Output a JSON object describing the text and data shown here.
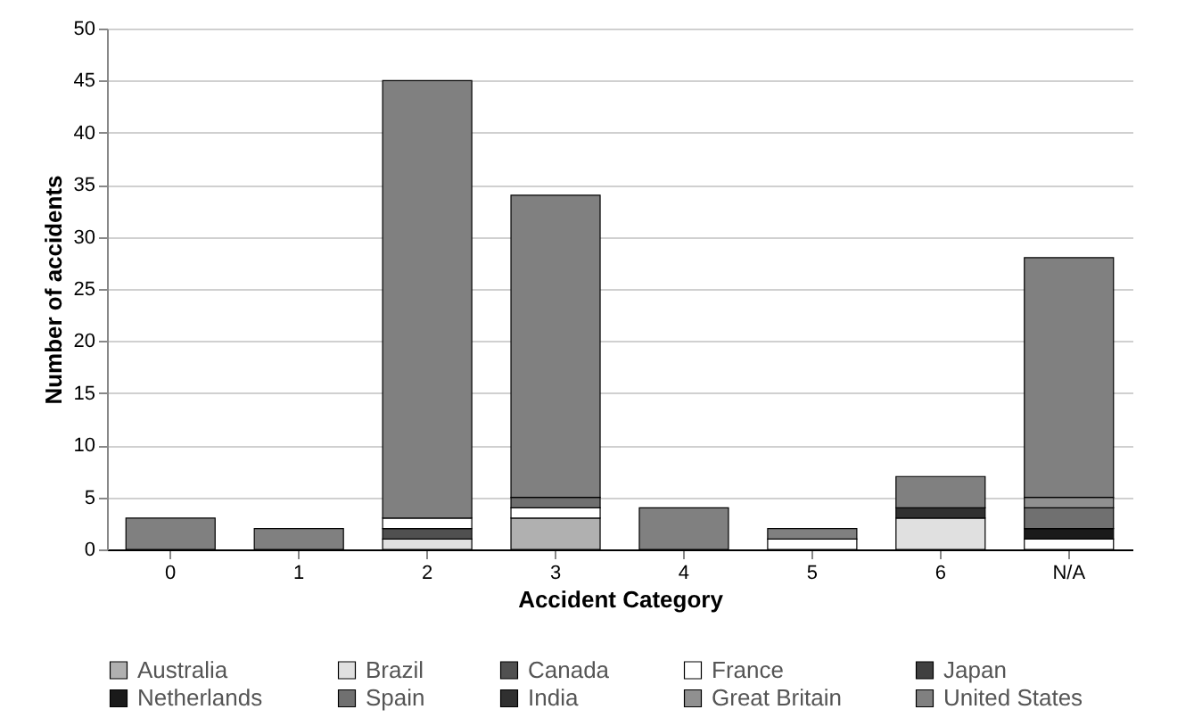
{
  "chart_data": {
    "type": "bar",
    "stacked": true,
    "xlabel": "Accident Category",
    "ylabel": "Number of accidents",
    "categories": [
      "0",
      "1",
      "2",
      "3",
      "4",
      "5",
      "6",
      "N/A"
    ],
    "series": [
      {
        "name": "Australia",
        "color": "#b0b0b0",
        "values": [
          null,
          null,
          null,
          3,
          null,
          null,
          null,
          null
        ]
      },
      {
        "name": "Brazil",
        "color": "#e0e0e0",
        "values": [
          null,
          null,
          1,
          null,
          null,
          null,
          3,
          null
        ]
      },
      {
        "name": "Canada",
        "color": "#505050",
        "values": [
          null,
          null,
          1,
          null,
          null,
          null,
          null,
          null
        ]
      },
      {
        "name": "France",
        "color": "#ffffff",
        "values": [
          null,
          null,
          1,
          1,
          null,
          1,
          null,
          1
        ]
      },
      {
        "name": "Japan",
        "color": "#404040",
        "values": [
          null,
          null,
          null,
          null,
          null,
          null,
          null,
          null
        ]
      },
      {
        "name": "Netherlands",
        "color": "#1a1a1a",
        "values": [
          null,
          null,
          null,
          null,
          null,
          null,
          null,
          1
        ]
      },
      {
        "name": "Spain",
        "color": "#707070",
        "values": [
          null,
          null,
          null,
          1,
          null,
          null,
          null,
          2
        ]
      },
      {
        "name": "India",
        "color": "#303030",
        "values": [
          null,
          null,
          null,
          null,
          null,
          null,
          1,
          null
        ]
      },
      {
        "name": "Great Britain",
        "color": "#909090",
        "values": [
          null,
          null,
          null,
          null,
          null,
          null,
          null,
          1
        ]
      },
      {
        "name": "United States",
        "color": "#808080",
        "values": [
          3,
          2,
          42,
          29,
          4,
          1,
          3,
          23
        ]
      }
    ],
    "ylim": [
      0,
      50
    ],
    "yticks": [
      0,
      5,
      10,
      15,
      20,
      25,
      30,
      35,
      40,
      45,
      50
    ],
    "grid": "y",
    "legend": "bottom"
  }
}
